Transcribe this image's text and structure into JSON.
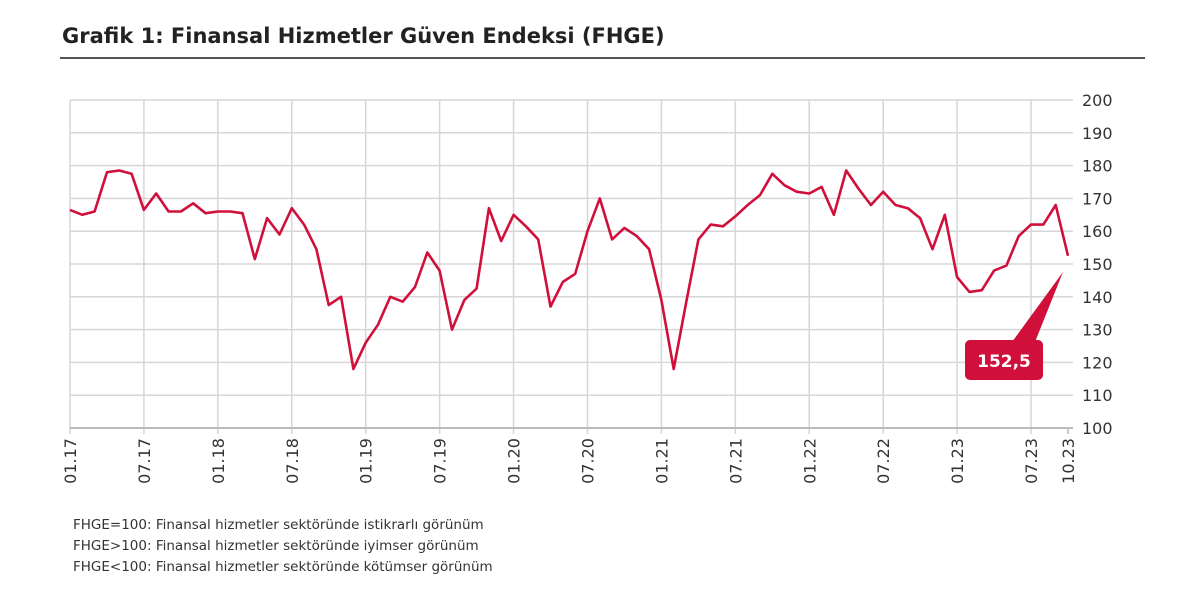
{
  "title": "Grafik 1: Finansal Hizmetler Güven Endeksi (FHGE)",
  "notes": [
    "FHGE=100: Finansal hizmetler sektöründe istikrarlı görünüm",
    "FHGE>100: Finansal hizmetler sektöründe iyimser görünüm",
    "FHGE<100: Finansal hizmetler sektöründe kötümser görünüm"
  ],
  "chart_data": {
    "type": "line",
    "title": "Finansal Hizmetler Güven Endeksi (FHGE)",
    "x_start": "01.17",
    "x_end": "10.23",
    "frequency": "monthly",
    "x_tick_labels": [
      "01.17",
      "07.17",
      "01.18",
      "07.18",
      "01.19",
      "07.19",
      "01.20",
      "07.20",
      "01.21",
      "07.21",
      "01.22",
      "07.22",
      "01.23",
      "07.23",
      "10.23"
    ],
    "y_ticks": [
      100,
      110,
      120,
      130,
      140,
      150,
      160,
      170,
      180,
      190,
      200
    ],
    "ylim": [
      100,
      200
    ],
    "y_axis_side": "right",
    "grid": true,
    "series": [
      {
        "name": "FHGE",
        "color": "#d0103a",
        "values": [
          166.5,
          165,
          166,
          178,
          178.5,
          177.5,
          166.5,
          171.5,
          166,
          166,
          168.5,
          165.5,
          166,
          166,
          165.5,
          151.5,
          164,
          159,
          167,
          162,
          154.5,
          137.5,
          140,
          118,
          126,
          131.5,
          140,
          138.5,
          143,
          153.5,
          148,
          130,
          139,
          142.5,
          167,
          157,
          165,
          161.5,
          157.5,
          137,
          144.5,
          147,
          160,
          170,
          157.5,
          161,
          158.5,
          154.5,
          139,
          118,
          138,
          157.5,
          162,
          161.5,
          164.5,
          168,
          171,
          177.5,
          174,
          172,
          171.5,
          173.5,
          165,
          178.5,
          173,
          168,
          172,
          168,
          167,
          164,
          154.5,
          165,
          146,
          141.5,
          142,
          148,
          149.5,
          158.5,
          162,
          162,
          168,
          152.5
        ]
      }
    ],
    "annotation": {
      "text": "152,5",
      "color": "#d0103a"
    }
  }
}
